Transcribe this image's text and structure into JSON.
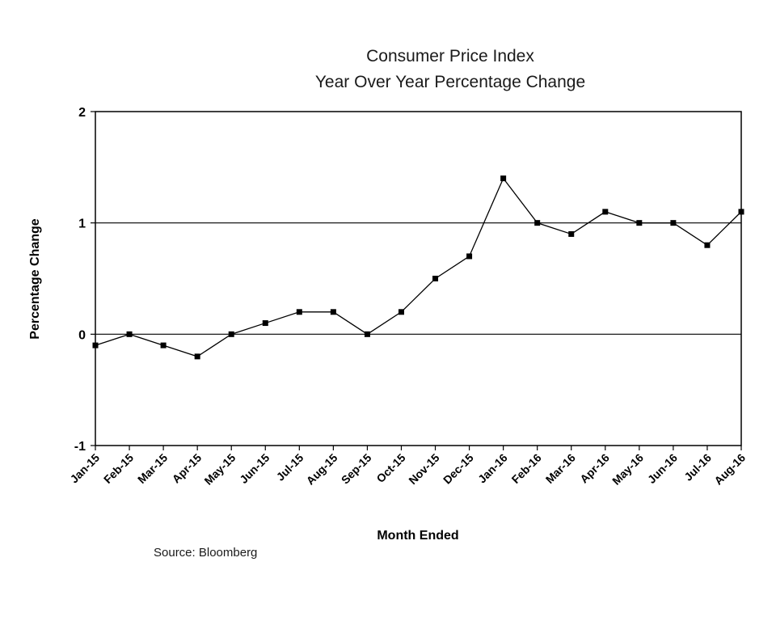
{
  "chart_data": {
    "type": "line",
    "title": "Consumer Price Index",
    "subtitle": "Year Over Year Percentage Change",
    "xlabel": "Month Ended",
    "ylabel": "Percentage Change",
    "source": "Source: Bloomberg",
    "ylim": [
      -1,
      2
    ],
    "yticks": [
      "-1",
      "0",
      "1",
      "2"
    ],
    "gridlines_y": [
      0,
      1
    ],
    "legend": "none",
    "categories": [
      "Jan-15",
      "Feb-15",
      "Mar-15",
      "Apr-15",
      "May-15",
      "Jun-15",
      "Jul-15",
      "Aug-15",
      "Sep-15",
      "Oct-15",
      "Nov-15",
      "Dec-15",
      "Jan-16",
      "Feb-16",
      "Mar-16",
      "Apr-16",
      "May-16",
      "Jun-16",
      "Jul-16",
      "Aug-16"
    ],
    "series": [
      {
        "values": [
          -0.1,
          0.0,
          -0.1,
          -0.2,
          0.0,
          0.1,
          0.2,
          0.2,
          0.0,
          0.2,
          0.5,
          0.7,
          1.4,
          1.0,
          0.9,
          1.1,
          1.0,
          1.0,
          0.8,
          1.1
        ]
      }
    ]
  },
  "colors": {
    "line": "#000000",
    "axis": "#000000"
  }
}
